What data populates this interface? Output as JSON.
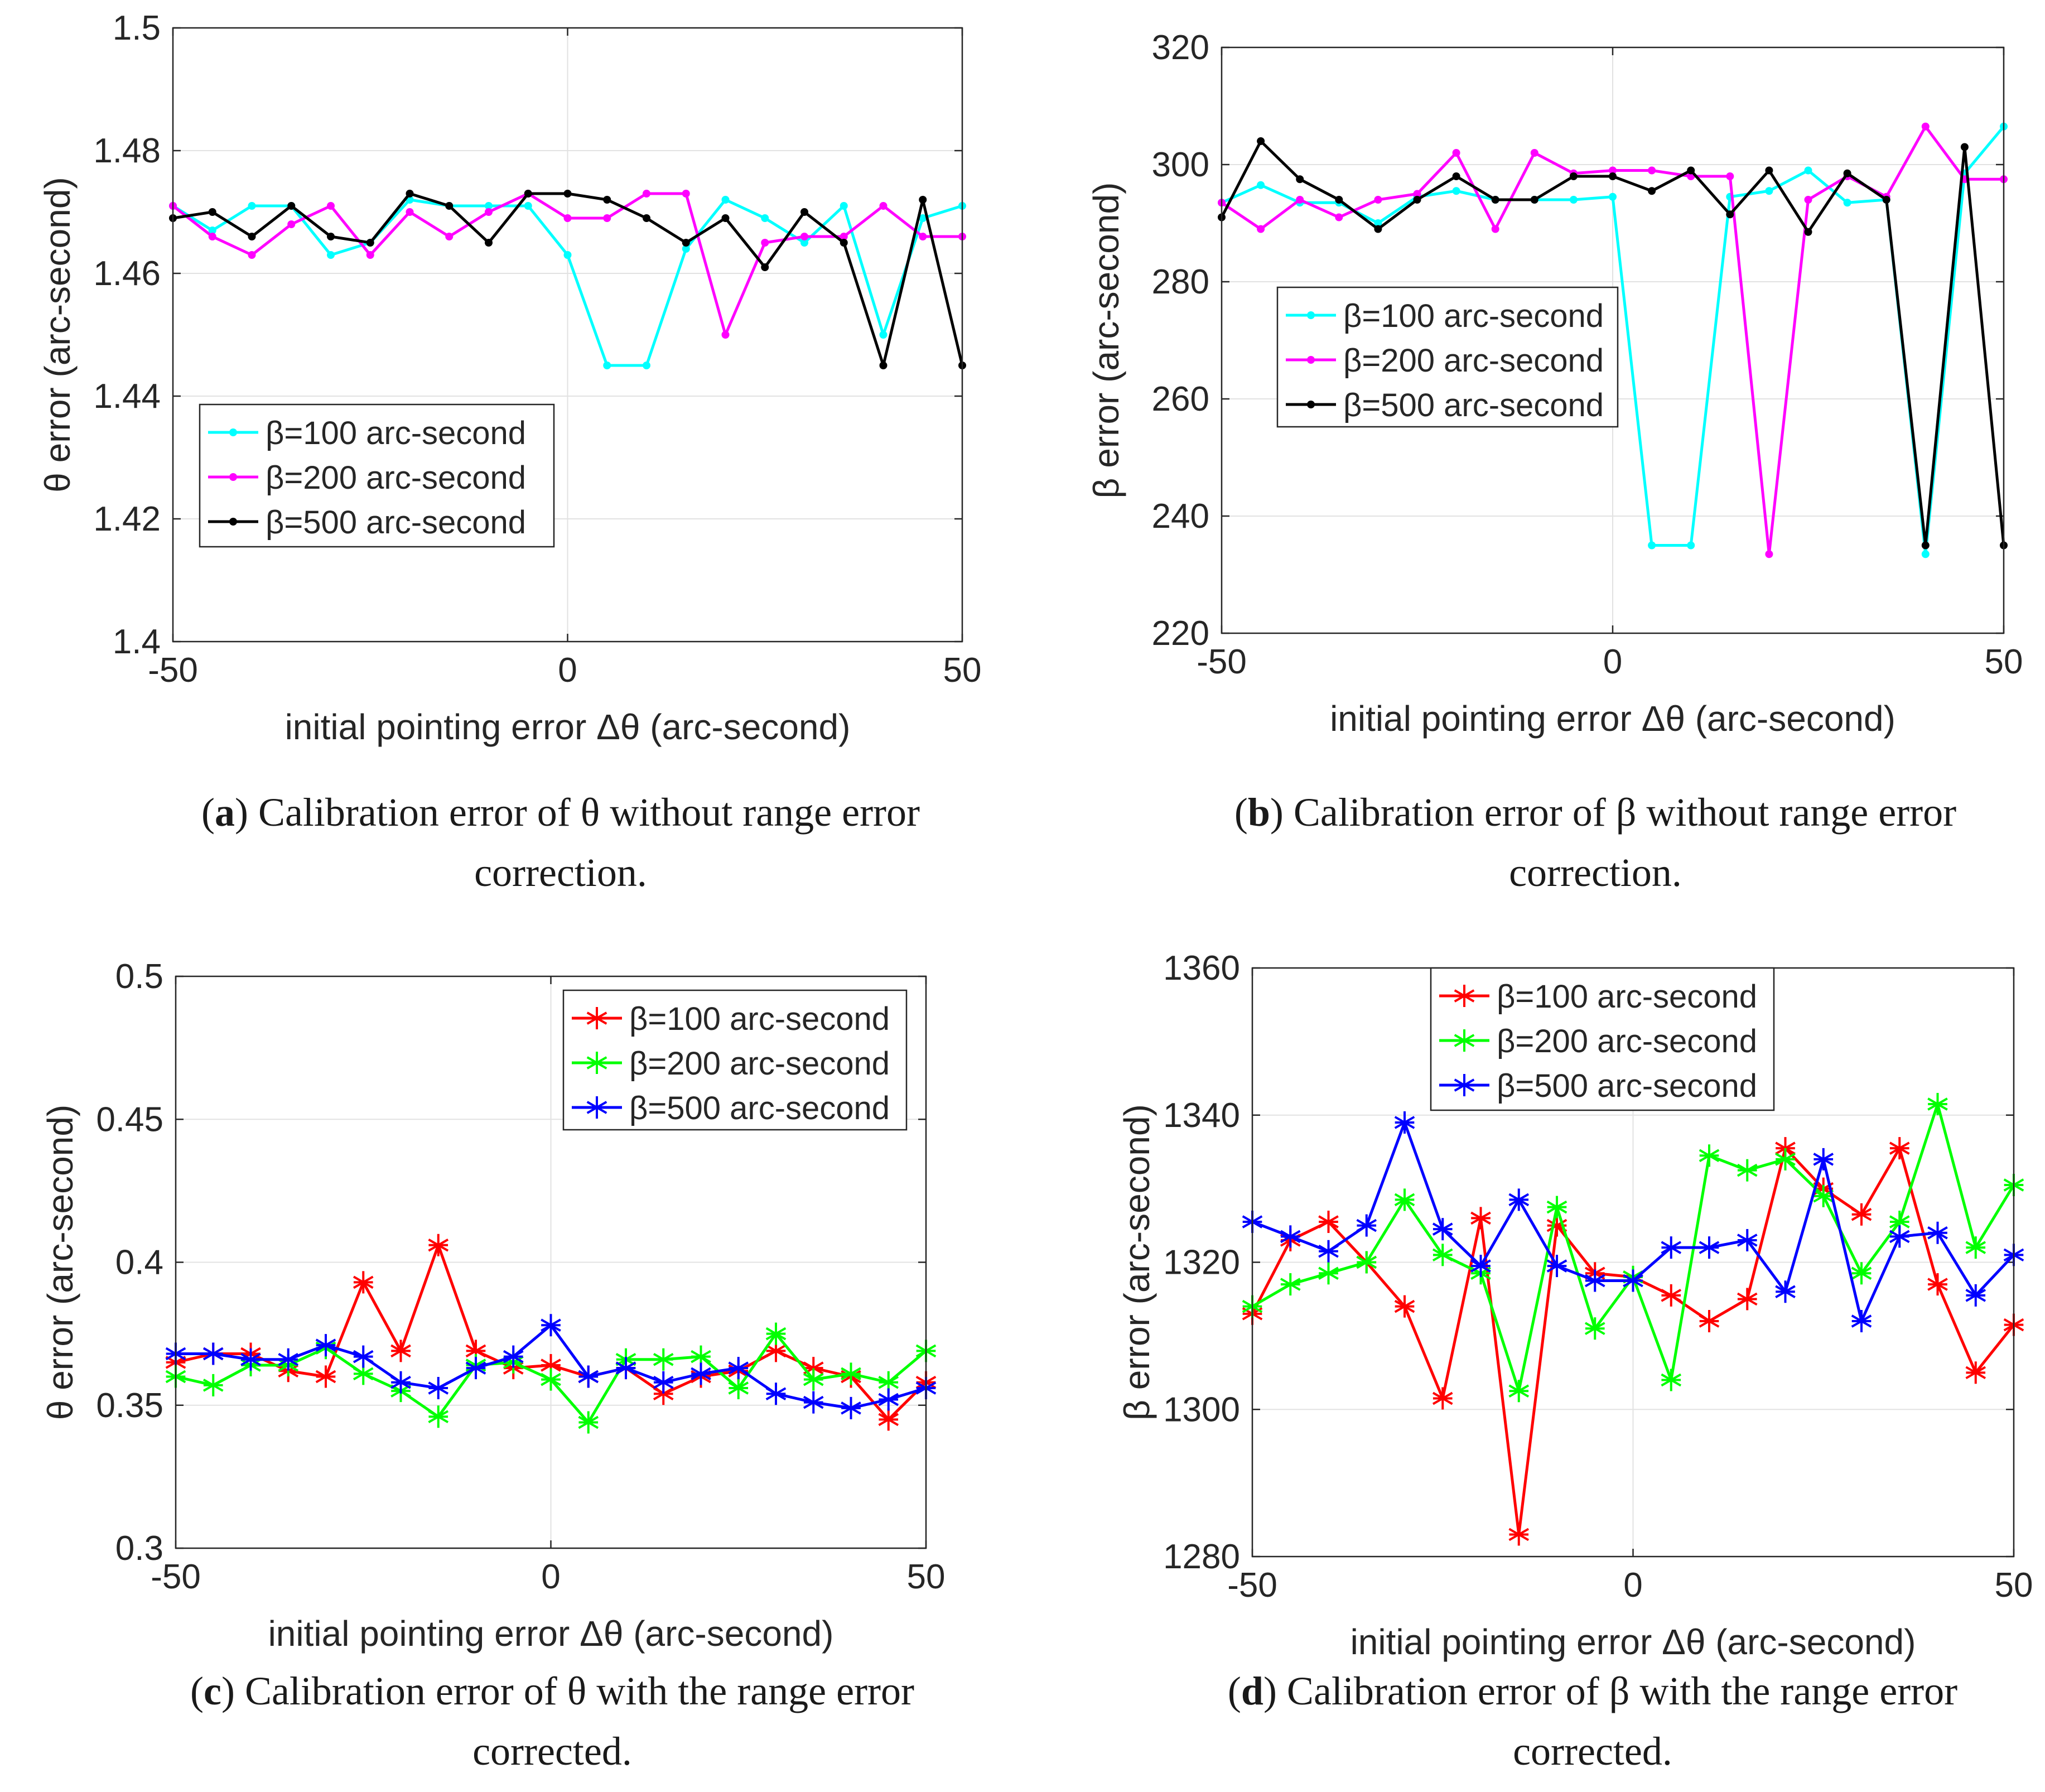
{
  "chart_data": [
    {
      "id": "a",
      "type": "line",
      "caption_letter": "a",
      "caption_line1": "Calibration error of θ without range error",
      "caption_line2": "correction.",
      "xlabel": "initial pointing error Δθ (arc-second)",
      "ylabel": "θ error (arc-second)",
      "xlim": [
        -50,
        50
      ],
      "ylim": [
        1.4,
        1.5
      ],
      "xticks": [
        -50,
        0,
        50
      ],
      "xtick_labels": [
        "-50",
        "0",
        "50"
      ],
      "yticks": [
        1.4,
        1.42,
        1.44,
        1.46,
        1.48,
        1.5
      ],
      "ytick_labels": [
        "1.4",
        "1.42",
        "1.44",
        "1.46",
        "1.48",
        "1.5"
      ],
      "grid": true,
      "legend_position": "bottom-left",
      "marker": "dot",
      "x": [
        -50,
        -45,
        -40,
        -35,
        -30,
        -25,
        -20,
        -15,
        -10,
        -5,
        0,
        5,
        10,
        15,
        20,
        25,
        30,
        35,
        40,
        45,
        50
      ],
      "series": [
        {
          "name": "β=100 arc-second",
          "color": "#00ffff",
          "values": [
            1.471,
            1.467,
            1.471,
            1.471,
            1.463,
            1.465,
            1.472,
            1.471,
            1.471,
            1.471,
            1.463,
            1.445,
            1.445,
            1.464,
            1.472,
            1.469,
            1.465,
            1.471,
            1.45,
            1.469,
            1.471
          ]
        },
        {
          "name": "β=200 arc-second",
          "color": "#ff00ff",
          "values": [
            1.471,
            1.466,
            1.463,
            1.468,
            1.471,
            1.463,
            1.47,
            1.466,
            1.47,
            1.473,
            1.469,
            1.469,
            1.473,
            1.473,
            1.45,
            1.465,
            1.466,
            1.466,
            1.471,
            1.466,
            1.466
          ]
        },
        {
          "name": "β=500 arc-second",
          "color": "#000000",
          "values": [
            1.469,
            1.47,
            1.466,
            1.471,
            1.466,
            1.465,
            1.473,
            1.471,
            1.465,
            1.473,
            1.473,
            1.472,
            1.469,
            1.465,
            1.469,
            1.461,
            1.47,
            1.465,
            1.445,
            1.472,
            1.445
          ]
        }
      ]
    },
    {
      "id": "b",
      "type": "line",
      "caption_letter": "b",
      "caption_line1": "Calibration error of β without range error",
      "caption_line2": "correction.",
      "xlabel": "initial pointing error Δθ (arc-second)",
      "ylabel": "β error (arc-second)",
      "xlim": [
        -50,
        50
      ],
      "ylim": [
        220,
        320
      ],
      "xticks": [
        -50,
        0,
        50
      ],
      "xtick_labels": [
        "-50",
        "0",
        "50"
      ],
      "yticks": [
        220,
        240,
        260,
        280,
        300,
        320
      ],
      "ytick_labels": [
        "220",
        "240",
        "260",
        "280",
        "300",
        "320"
      ],
      "grid": true,
      "legend_position": "middle-left",
      "marker": "dot",
      "x": [
        -50,
        -45,
        -40,
        -35,
        -30,
        -25,
        -20,
        -15,
        -10,
        -5,
        0,
        5,
        10,
        15,
        20,
        25,
        30,
        35,
        40,
        45,
        50
      ],
      "series": [
        {
          "name": "β=100 arc-second",
          "color": "#00ffff",
          "values": [
            293.5,
            296.5,
            293.5,
            293.5,
            290,
            294.5,
            295.5,
            294,
            294,
            294,
            294.5,
            235,
            235,
            294.5,
            295.5,
            299,
            293.5,
            294,
            233.5,
            298.5,
            306.5
          ]
        },
        {
          "name": "β=200 arc-second",
          "color": "#ff00ff",
          "values": [
            293.5,
            289,
            294,
            291,
            294,
            295,
            302,
            289,
            302,
            298.5,
            299,
            299,
            298,
            298,
            233.5,
            294,
            298,
            294.5,
            306.5,
            297.5,
            297.5
          ]
        },
        {
          "name": "β=500 arc-second",
          "color": "#000000",
          "values": [
            291,
            304,
            297.5,
            294,
            289,
            294,
            298,
            294,
            294,
            298,
            298,
            295.5,
            299,
            291.5,
            299,
            288.5,
            298.5,
            294,
            235,
            303,
            235
          ]
        }
      ]
    },
    {
      "id": "c",
      "type": "line",
      "caption_letter": "c",
      "caption_line1": "Calibration error of θ with the range error",
      "caption_line2": "corrected.",
      "xlabel": "initial pointing error Δθ (arc-second)",
      "ylabel": "θ error (arc-second)",
      "xlim": [
        -50,
        50
      ],
      "ylim": [
        0.3,
        0.5
      ],
      "xticks": [
        -50,
        0,
        50
      ],
      "xtick_labels": [
        "-50",
        "0",
        "50"
      ],
      "yticks": [
        0.3,
        0.35,
        0.4,
        0.45,
        0.5
      ],
      "ytick_labels": [
        "0.3",
        "0.35",
        "0.4",
        "0.45",
        "0.5"
      ],
      "grid": true,
      "legend_position": "top-right",
      "marker": "asterisk",
      "x": [
        -50,
        -45,
        -40,
        -35,
        -30,
        -25,
        -20,
        -15,
        -10,
        -5,
        0,
        5,
        10,
        15,
        20,
        25,
        30,
        35,
        40,
        45,
        50
      ],
      "series": [
        {
          "name": "β=100 arc-second",
          "color": "#ff0000",
          "values": [
            0.365,
            0.368,
            0.368,
            0.362,
            0.36,
            0.393,
            0.369,
            0.406,
            0.369,
            0.363,
            0.364,
            0.36,
            0.363,
            0.354,
            0.36,
            0.362,
            0.369,
            0.363,
            0.36,
            0.345,
            0.358
          ]
        },
        {
          "name": "β=200 arc-second",
          "color": "#00ff00",
          "values": [
            0.36,
            0.357,
            0.364,
            0.364,
            0.37,
            0.361,
            0.355,
            0.346,
            0.364,
            0.365,
            0.359,
            0.344,
            0.366,
            0.366,
            0.367,
            0.356,
            0.375,
            0.359,
            0.361,
            0.358,
            0.369
          ]
        },
        {
          "name": "β=500 arc-second",
          "color": "#0000ff",
          "values": [
            0.368,
            0.368,
            0.366,
            0.366,
            0.371,
            0.367,
            0.358,
            0.356,
            0.363,
            0.367,
            0.378,
            0.36,
            0.363,
            0.358,
            0.361,
            0.363,
            0.354,
            0.351,
            0.349,
            0.352,
            0.356
          ]
        }
      ]
    },
    {
      "id": "d",
      "type": "line",
      "caption_letter": "d",
      "caption_line1": "Calibration error of β with the range error",
      "caption_line2": "corrected.",
      "xlabel": "initial pointing error Δθ (arc-second)",
      "ylabel": "β error (arc-second)",
      "xlim": [
        -50,
        50
      ],
      "ylim": [
        1280,
        1360
      ],
      "xticks": [
        -50,
        0,
        50
      ],
      "xtick_labels": [
        "-50",
        "0",
        "50"
      ],
      "yticks": [
        1280,
        1300,
        1320,
        1340,
        1360
      ],
      "ytick_labels": [
        "1280",
        "1300",
        "1320",
        "1340",
        "1360"
      ],
      "grid": true,
      "legend_position": "top-left",
      "marker": "asterisk",
      "x": [
        -50,
        -45,
        -40,
        -35,
        -30,
        -25,
        -20,
        -15,
        -10,
        -5,
        0,
        5,
        10,
        15,
        20,
        25,
        30,
        35,
        40,
        45,
        50
      ],
      "series": [
        {
          "name": "β=100 arc-second",
          "color": "#ff0000",
          "values": [
            1313,
            1323,
            1325.5,
            1320,
            1314,
            1301.5,
            1326,
            1283,
            1325,
            1318.5,
            1318,
            1315.5,
            1312,
            1315,
            1335.5,
            1330,
            1326.5,
            1335.5,
            1317,
            1305,
            1311.5
          ]
        },
        {
          "name": "β=200 arc-second",
          "color": "#00ff00",
          "values": [
            1314,
            1317,
            1318.5,
            1320,
            1328.5,
            1321,
            1318.5,
            1302.5,
            1327.5,
            1311,
            1318,
            1304,
            1334.5,
            1332.5,
            1334,
            1329,
            1318.5,
            1325.5,
            1341.5,
            1322,
            1330.5
          ]
        },
        {
          "name": "β=500 arc-second",
          "color": "#0000ff",
          "values": [
            1325.5,
            1323.5,
            1321.5,
            1325,
            1339,
            1324.5,
            1319.5,
            1328.5,
            1319.5,
            1317.5,
            1317.5,
            1322,
            1322,
            1323,
            1316,
            1334,
            1312,
            1323.5,
            1324,
            1315.5,
            1321
          ]
        }
      ]
    }
  ]
}
